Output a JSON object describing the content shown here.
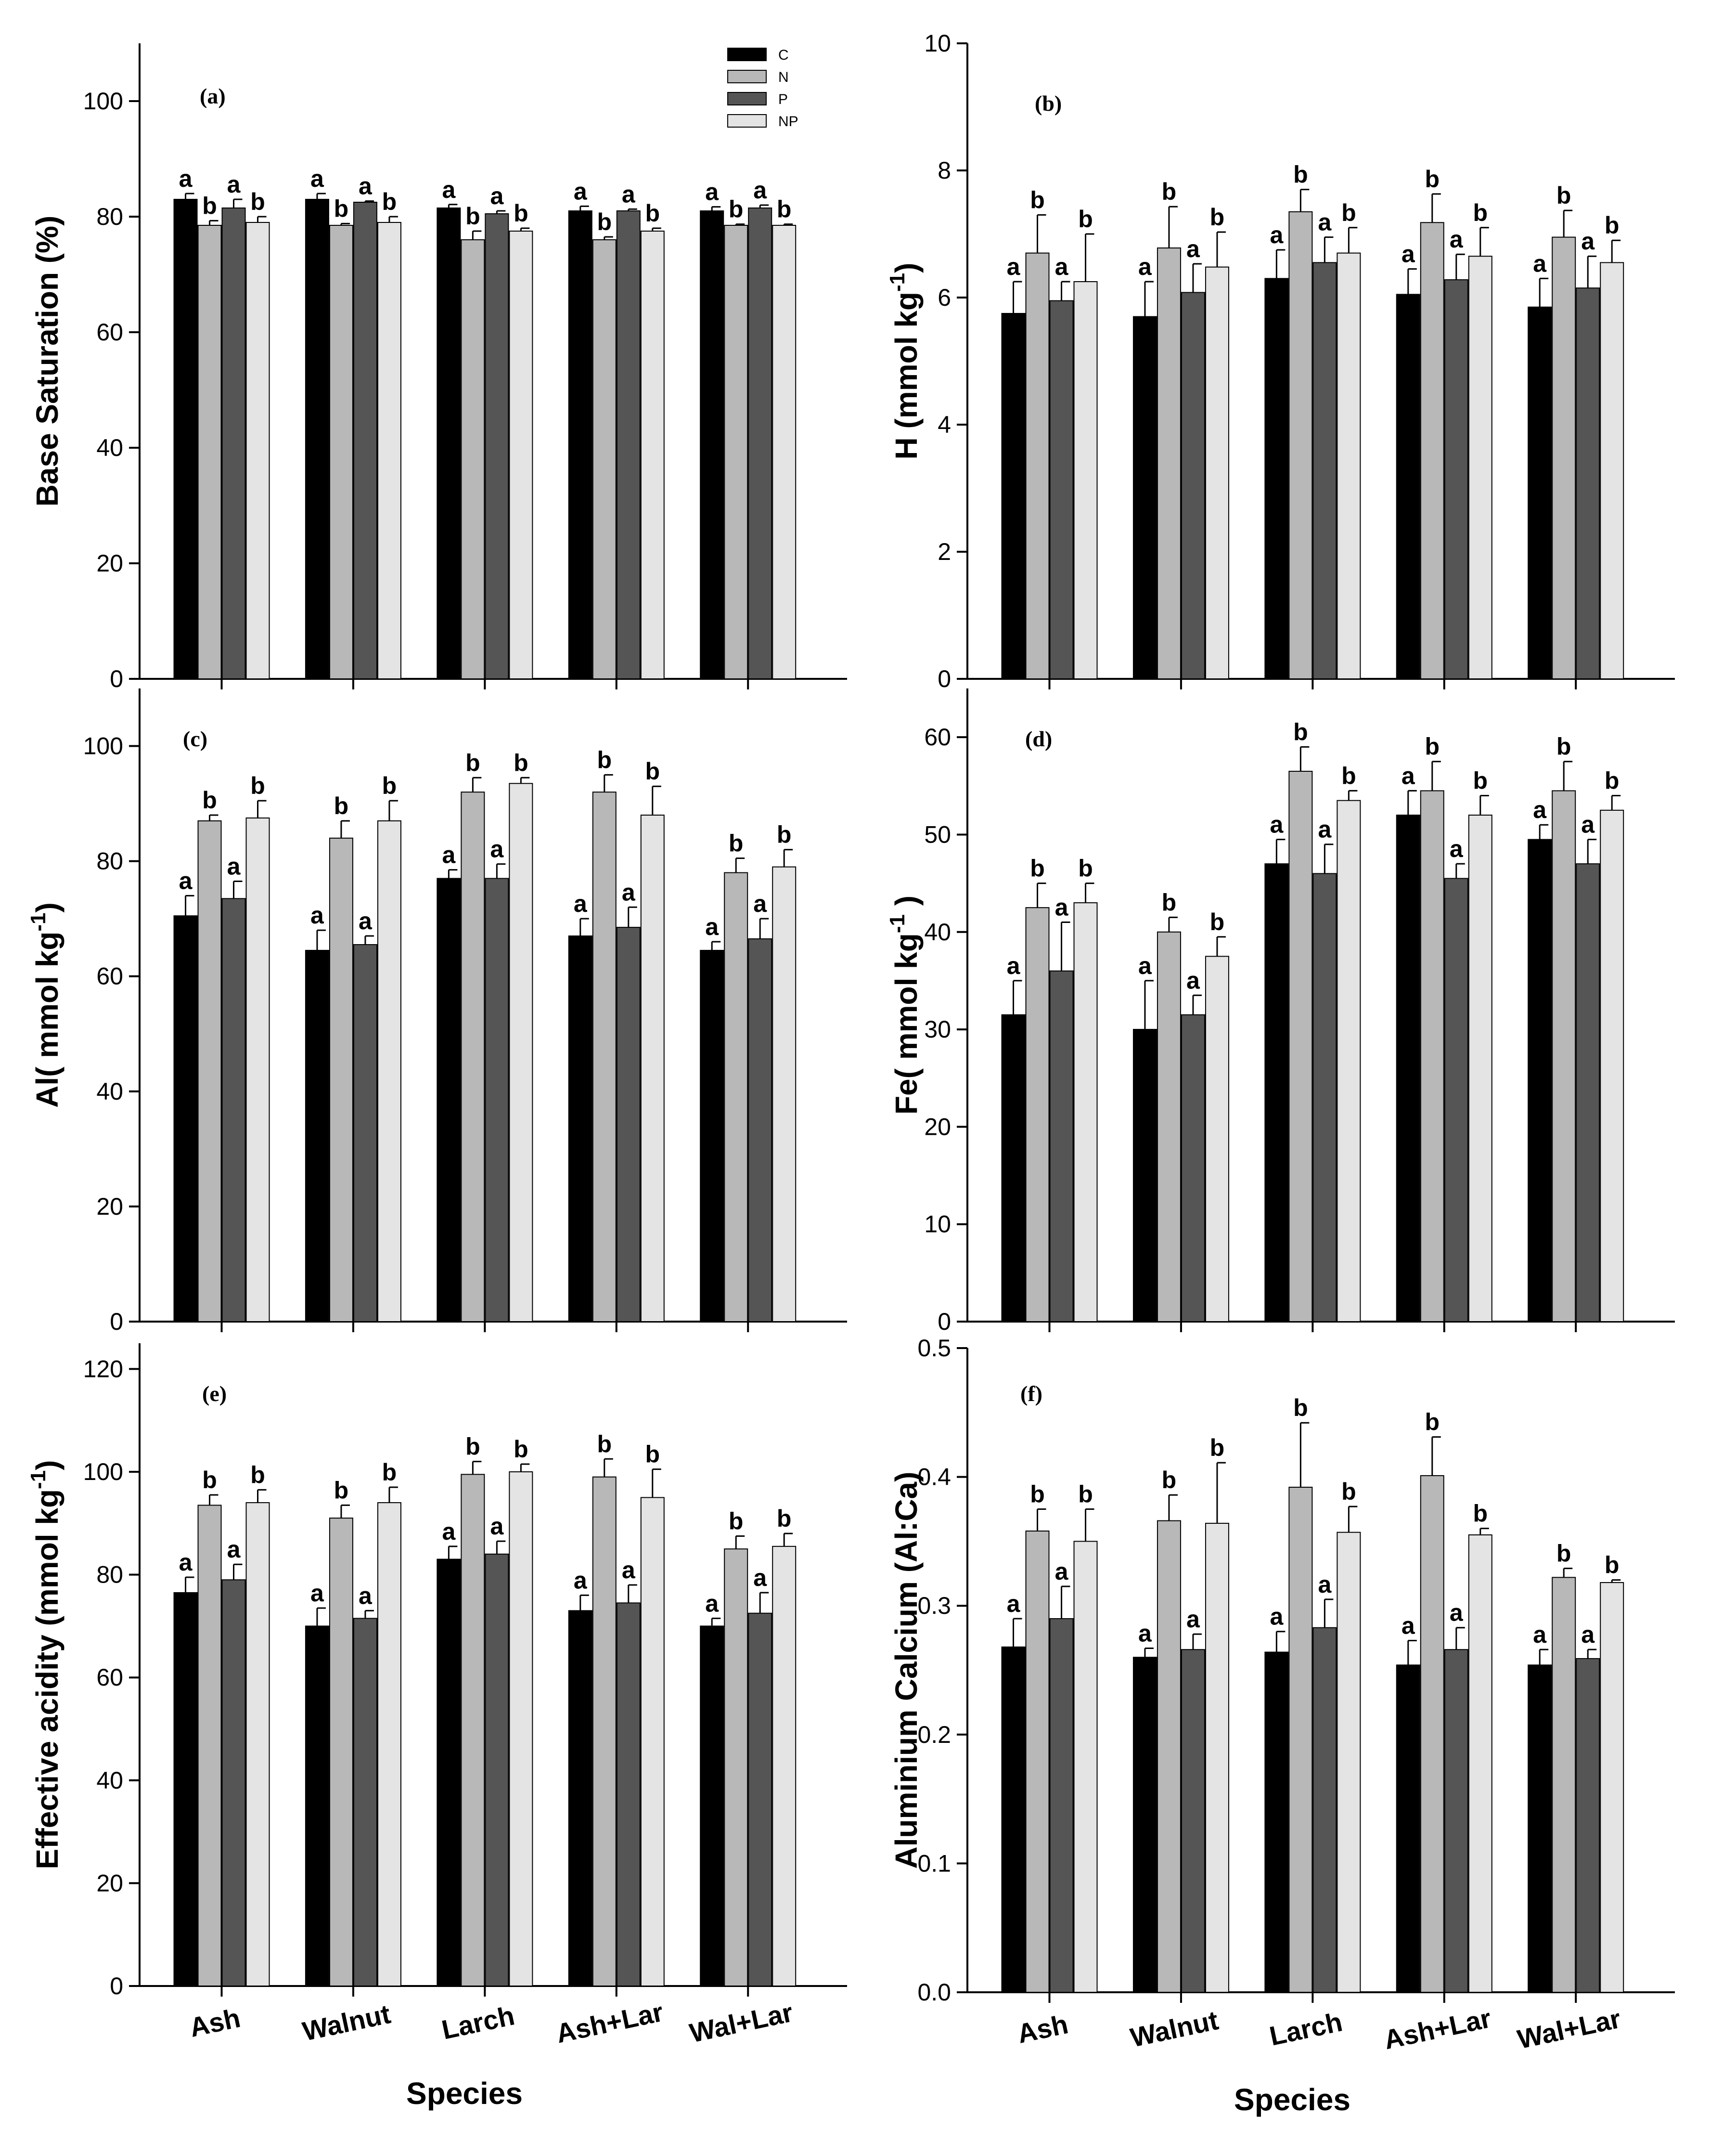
{
  "series_names": [
    "C",
    "N",
    "P",
    "NP"
  ],
  "series_colors": [
    "#000000",
    "#b8b8b8",
    "#555555",
    "#e4e4e4"
  ],
  "categories": [
    "Ash",
    "Walnut",
    "Larch",
    "Ash+Lar",
    "Wal+Lar"
  ],
  "xlabel": "Species",
  "chart_data": [
    {
      "type": "bar",
      "panel": "(a)",
      "ylabel": "Base Saturation (%)",
      "ylim": [
        0,
        110
      ],
      "ticks": [
        0,
        20,
        40,
        60,
        80,
        100
      ],
      "tick_labels": [
        "0",
        "20",
        "40",
        "60",
        "80",
        "100"
      ],
      "legend": "top-center",
      "series": [
        {
          "name": "C",
          "values": [
            83,
            83,
            81.5,
            81,
            81
          ],
          "errors": [
            1,
            1,
            0.6,
            0.8,
            0.7
          ],
          "letters": [
            "a",
            "a",
            "a",
            "a",
            "a"
          ]
        },
        {
          "name": "N",
          "values": [
            78.5,
            78.5,
            76,
            76,
            78.5
          ],
          "errors": [
            0.8,
            0.3,
            1.5,
            0.5,
            0.2
          ],
          "letters": [
            "b",
            "b",
            "b",
            "b",
            "b"
          ]
        },
        {
          "name": "P",
          "values": [
            81.5,
            82.5,
            80.5,
            81,
            81.5
          ],
          "errors": [
            1.5,
            0.2,
            0.5,
            0.3,
            0.5
          ],
          "letters": [
            "a",
            "a",
            "a",
            "a",
            "a"
          ]
        },
        {
          "name": "NP",
          "values": [
            79,
            79,
            77.5,
            77.5,
            78.5
          ],
          "errors": [
            1,
            1,
            0.5,
            0.5,
            0.2
          ],
          "letters": [
            "b",
            "b",
            "b",
            "b",
            "b"
          ]
        }
      ]
    },
    {
      "type": "bar",
      "panel": "(b)",
      "ylabel": "H (mmol kg-1)",
      "ylim": [
        0,
        10
      ],
      "ticks": [
        0,
        2,
        4,
        6,
        8,
        10
      ],
      "tick_labels": [
        "0",
        "2",
        "4",
        "6",
        "8",
        "10"
      ],
      "series": [
        {
          "name": "C",
          "values": [
            5.75,
            5.7,
            6.3,
            6.05,
            5.85
          ],
          "errors": [
            0.5,
            0.55,
            0.45,
            0.4,
            0.45
          ],
          "letters": [
            "a",
            "a",
            "a",
            "a",
            "a"
          ]
        },
        {
          "name": "N",
          "values": [
            6.7,
            6.78,
            7.35,
            7.18,
            6.95
          ],
          "errors": [
            0.6,
            0.65,
            0.35,
            0.45,
            0.42
          ],
          "letters": [
            "b",
            "b",
            "b",
            "b",
            "b"
          ]
        },
        {
          "name": "P",
          "values": [
            5.95,
            6.08,
            6.55,
            6.28,
            6.15
          ],
          "errors": [
            0.3,
            0.45,
            0.4,
            0.4,
            0.5
          ],
          "letters": [
            "a",
            "a",
            "a",
            "a",
            "a"
          ]
        },
        {
          "name": "NP",
          "values": [
            6.25,
            6.48,
            6.7,
            6.65,
            6.55
          ],
          "errors": [
            0.75,
            0.55,
            0.4,
            0.45,
            0.35
          ],
          "letters": [
            "b",
            "b",
            "b",
            "b",
            "b"
          ]
        }
      ]
    },
    {
      "type": "bar",
      "panel": "(c)",
      "ylabel": "Al( mmol kg-1)",
      "ylim": [
        0,
        110
      ],
      "ticks": [
        0,
        20,
        40,
        60,
        80,
        100
      ],
      "tick_labels": [
        "0",
        "20",
        "40",
        "60",
        "80",
        "100"
      ],
      "series": [
        {
          "name": "C",
          "values": [
            70.5,
            64.5,
            77,
            67,
            64.5
          ],
          "errors": [
            3.5,
            3.5,
            1.5,
            3,
            1.5
          ],
          "letters": [
            "a",
            "a",
            "a",
            "a",
            "a"
          ]
        },
        {
          "name": "N",
          "values": [
            87,
            84,
            92,
            92,
            78
          ],
          "errors": [
            1,
            3,
            2.5,
            3,
            2.5
          ],
          "letters": [
            "b",
            "b",
            "b",
            "b",
            "b"
          ]
        },
        {
          "name": "P",
          "values": [
            73.5,
            65.5,
            77,
            68.5,
            66.5
          ],
          "errors": [
            3,
            1.5,
            2.5,
            3.5,
            3.5
          ],
          "letters": [
            "a",
            "a",
            "a",
            "a",
            "a"
          ]
        },
        {
          "name": "NP",
          "values": [
            87.5,
            87,
            93.5,
            88,
            79
          ],
          "errors": [
            3,
            3.5,
            1,
            5,
            3
          ],
          "letters": [
            "b",
            "b",
            "b",
            "b",
            "b"
          ]
        }
      ]
    },
    {
      "type": "bar",
      "panel": "(d)",
      "ylabel": "Fe( mmol kg-1 )",
      "ylim": [
        0,
        65
      ],
      "ticks": [
        0,
        10,
        20,
        30,
        40,
        50,
        60
      ],
      "tick_labels": [
        "0",
        "10",
        "20",
        "30",
        "40",
        "50",
        "60"
      ],
      "series": [
        {
          "name": "C",
          "values": [
            31.5,
            30,
            47,
            52,
            49.5
          ],
          "errors": [
            3.5,
            5,
            2.5,
            2.5,
            1.5
          ],
          "letters": [
            "a",
            "a",
            "a",
            "a",
            "a"
          ]
        },
        {
          "name": "N",
          "values": [
            42.5,
            40,
            56.5,
            54.5,
            54.5
          ],
          "errors": [
            2.5,
            1.5,
            2.5,
            3,
            3
          ],
          "letters": [
            "b",
            "b",
            "b",
            "b",
            "b"
          ]
        },
        {
          "name": "P",
          "values": [
            36,
            31.5,
            46,
            45.5,
            47
          ],
          "errors": [
            5,
            2,
            3,
            1.5,
            2.5
          ],
          "letters": [
            "a",
            "a",
            "a",
            "a",
            "a"
          ]
        },
        {
          "name": "NP",
          "values": [
            43,
            37.5,
            53.5,
            52,
            52.5
          ],
          "errors": [
            2,
            2,
            1,
            2,
            1.5
          ],
          "letters": [
            "b",
            "b",
            "b",
            "b",
            "b"
          ]
        }
      ]
    },
    {
      "type": "bar",
      "panel": "(e)",
      "ylabel": "Effective acidity (mmol kg-1)",
      "ylim": [
        0,
        125
      ],
      "ticks": [
        0,
        20,
        40,
        60,
        80,
        100,
        120
      ],
      "tick_labels": [
        "0",
        "20",
        "40",
        "60",
        "80",
        "100",
        "120"
      ],
      "series": [
        {
          "name": "C",
          "values": [
            76.5,
            70,
            83,
            73,
            70
          ],
          "errors": [
            3,
            3.5,
            2.5,
            3,
            1.5
          ],
          "letters": [
            "a",
            "a",
            "a",
            "a",
            "a"
          ]
        },
        {
          "name": "N",
          "values": [
            93.5,
            91,
            99.5,
            99,
            85
          ],
          "errors": [
            2,
            2.5,
            2.5,
            3.5,
            2.5
          ],
          "letters": [
            "b",
            "b",
            "b",
            "b",
            "b"
          ]
        },
        {
          "name": "P",
          "values": [
            79,
            71.5,
            84,
            74.5,
            72.5
          ],
          "errors": [
            3,
            1.5,
            2.5,
            3.5,
            4
          ],
          "letters": [
            "a",
            "a",
            "a",
            "a",
            "a"
          ]
        },
        {
          "name": "NP",
          "values": [
            94,
            94,
            100,
            95,
            85.5
          ],
          "errors": [
            2.5,
            3,
            1.5,
            5.5,
            2.5
          ],
          "letters": [
            "b",
            "b",
            "b",
            "b",
            "b"
          ]
        }
      ]
    },
    {
      "type": "bar",
      "panel": "(f)",
      "ylabel": "Aluminium Calcium (Al:Ca)",
      "ylim": [
        0,
        0.5
      ],
      "ticks": [
        0,
        0.1,
        0.2,
        0.3,
        0.4,
        0.5
      ],
      "tick_labels": [
        "0.0",
        "0.1",
        "0.2",
        "0.3",
        "0.4",
        "0.5"
      ],
      "series": [
        {
          "name": "C",
          "values": [
            0.268,
            0.26,
            0.264,
            0.254,
            0.254
          ],
          "errors": [
            0.022,
            0.007,
            0.016,
            0.019,
            0.012
          ],
          "letters": [
            "a",
            "a",
            "a",
            "a",
            "a"
          ]
        },
        {
          "name": "N",
          "values": [
            0.358,
            0.366,
            0.392,
            0.401,
            0.322
          ],
          "errors": [
            0.017,
            0.02,
            0.05,
            0.03,
            0.007
          ],
          "letters": [
            "b",
            "b",
            "b",
            "b",
            "b"
          ]
        },
        {
          "name": "P",
          "values": [
            0.29,
            0.266,
            0.283,
            0.266,
            0.259
          ],
          "errors": [
            0.025,
            0.012,
            0.022,
            0.017,
            0.007
          ],
          "letters": [
            "a",
            "a",
            "a",
            "a",
            "a"
          ]
        },
        {
          "name": "NP",
          "values": [
            0.35,
            0.364,
            0.357,
            0.355,
            0.318
          ],
          "errors": [
            0.025,
            0.047,
            0.02,
            0.005,
            0.002
          ],
          "letters": [
            "b",
            "b",
            "b",
            "b",
            "b"
          ]
        }
      ]
    }
  ]
}
